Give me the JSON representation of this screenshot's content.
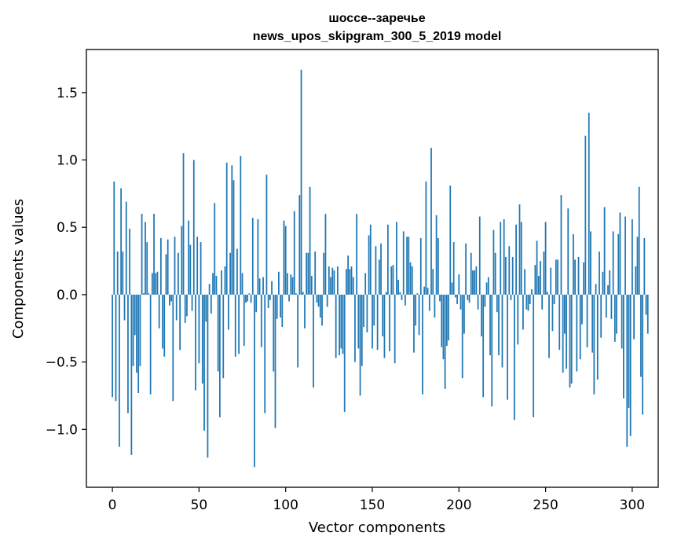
{
  "chart_data": {
    "type": "bar",
    "title": "шоссе--заречье",
    "subtitle": "news_upos_skipgram_300_5_2019 model",
    "xlabel": "Vector components",
    "ylabel": "Components values",
    "xlim": [
      -15,
      315
    ],
    "ylim": [
      -1.43,
      1.82
    ],
    "xticks": [
      0,
      50,
      100,
      150,
      200,
      250,
      300
    ],
    "xtick_labels": [
      "0",
      "50",
      "100",
      "150",
      "200",
      "250",
      "300"
    ],
    "yticks": [
      -1.0,
      -0.5,
      0.0,
      0.5,
      1.0,
      1.5
    ],
    "ytick_labels": [
      "−1.0",
      "−0.5",
      "0.0",
      "0.5",
      "1.0",
      "1.5"
    ],
    "bar_color": "#1f77b4",
    "grid": false,
    "legend": "none",
    "values": [
      -0.76,
      0.84,
      -0.79,
      0.32,
      -1.13,
      0.79,
      0.32,
      -0.19,
      0.69,
      -0.88,
      0.49,
      -1.19,
      -0.53,
      -0.3,
      -0.58,
      -0.73,
      -0.53,
      0.6,
      0.01,
      0.54,
      0.39,
      0.01,
      -0.74,
      0.16,
      0.6,
      0.16,
      0.17,
      -0.25,
      0.42,
      -0.4,
      -0.46,
      0.3,
      0.41,
      -0.08,
      -0.05,
      -0.79,
      0.43,
      -0.19,
      0.31,
      -0.41,
      0.51,
      1.05,
      -0.21,
      -0.16,
      0.55,
      0.37,
      -0.12,
      1.0,
      -0.71,
      0.43,
      -0.51,
      0.39,
      -0.66,
      -1.01,
      -0.2,
      -1.21,
      0.08,
      -0.14,
      0.16,
      0.68,
      0.14,
      -0.57,
      -0.91,
      0.18,
      -0.62,
      0.21,
      0.98,
      -0.26,
      0.31,
      0.96,
      0.85,
      -0.46,
      0.34,
      -0.44,
      1.03,
      0.16,
      -0.38,
      -0.06,
      -0.05,
      0.01,
      -0.06,
      0.57,
      -1.28,
      -0.13,
      0.56,
      0.12,
      -0.39,
      0.13,
      -0.88,
      0.89,
      -0.1,
      -0.04,
      0.1,
      -0.57,
      -0.99,
      -0.18,
      0.17,
      -0.17,
      -0.24,
      0.55,
      0.51,
      0.16,
      -0.05,
      0.15,
      0.13,
      0.62,
      0.01,
      -0.54,
      0.74,
      1.67,
      0.02,
      -0.25,
      0.31,
      0.31,
      0.8,
      0.14,
      -0.69,
      0.32,
      -0.06,
      -0.09,
      -0.17,
      -0.23,
      0.31,
      0.6,
      -0.09,
      0.21,
      0.13,
      0.2,
      0.18,
      -0.47,
      0.21,
      -0.45,
      -0.4,
      -0.44,
      -0.87,
      0.19,
      0.29,
      0.19,
      0.21,
      0.13,
      -0.5,
      0.6,
      -0.4,
      -0.75,
      -0.53,
      -0.24,
      0.16,
      -0.28,
      0.44,
      0.52,
      -0.4,
      -0.23,
      0.36,
      -0.41,
      0.26,
      0.38,
      -0.31,
      -0.47,
      0.02,
      0.52,
      -0.42,
      0.21,
      0.22,
      -0.51,
      0.54,
      0.11,
      0.02,
      -0.04,
      0.47,
      -0.08,
      0.43,
      0.43,
      0.24,
      0.21,
      -0.43,
      -0.23,
      0.01,
      -0.3,
      0.42,
      -0.74,
      0.06,
      0.84,
      0.05,
      -0.12,
      1.09,
      0.19,
      -0.17,
      0.59,
      0.42,
      -0.05,
      -0.39,
      -0.48,
      -0.7,
      -0.38,
      -0.34,
      0.81,
      0.09,
      0.39,
      -0.02,
      -0.07,
      0.15,
      -0.11,
      -0.62,
      -0.29,
      0.38,
      -0.04,
      -0.06,
      0.31,
      0.18,
      0.18,
      0.21,
      -0.11,
      0.58,
      -0.31,
      -0.76,
      -0.09,
      0.09,
      0.13,
      -0.45,
      -0.83,
      0.48,
      0.31,
      -0.13,
      -0.45,
      0.54,
      -0.54,
      0.56,
      0.28,
      -0.78,
      0.36,
      -0.04,
      0.28,
      -0.93,
      0.52,
      -0.37,
      0.67,
      0.54,
      -0.26,
      0.19,
      -0.11,
      -0.12,
      -0.07,
      0.04,
      -0.91,
      0.22,
      0.4,
      0.14,
      0.25,
      -0.11,
      0.32,
      0.54,
      0.02,
      -0.47,
      0.2,
      -0.27,
      -0.07,
      0.26,
      0.26,
      -0.41,
      0.74,
      -0.58,
      -0.29,
      -0.55,
      0.64,
      -0.69,
      -0.66,
      0.45,
      0.26,
      -0.57,
      0.28,
      -0.48,
      -0.22,
      0.24,
      1.18,
      -0.39,
      1.35,
      0.47,
      -0.43,
      -0.74,
      0.08,
      -0.63,
      0.32,
      -0.32,
      0.17,
      0.65,
      -0.17,
      0.07,
      0.18,
      -0.18,
      0.47,
      -0.35,
      -0.29,
      0.45,
      0.61,
      -0.4,
      -0.77,
      0.58,
      -1.13,
      -0.84,
      -1.05,
      0.56,
      -0.33,
      0.21,
      0.43,
      0.8,
      -0.61,
      -0.89,
      0.42,
      -0.15,
      -0.29
    ],
    "value_offset": 0.0
  }
}
